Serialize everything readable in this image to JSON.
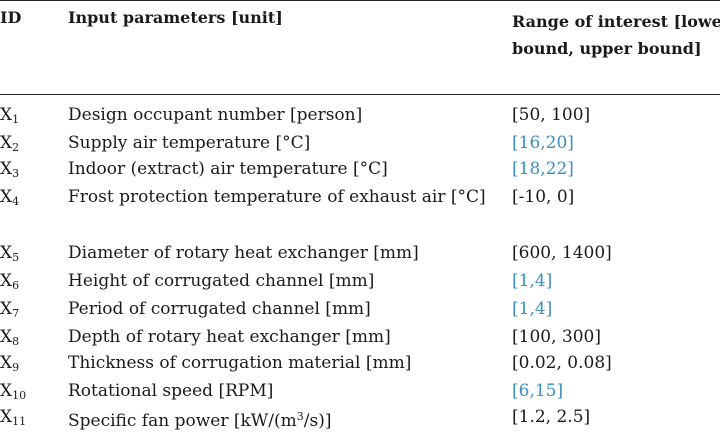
{
  "header": {
    "id_label": "ID",
    "param_label": "Input parameters [unit]",
    "range_label": "Range of interest [lower bound, upper bound]"
  },
  "rows": [
    {
      "id": "X",
      "sub": "1",
      "param": "Design occupant number [person]",
      "range": "[50, 100]",
      "highlight": false
    },
    {
      "id": "X",
      "sub": "2",
      "param": "Supply air temperature [°C]",
      "range": "[16,20]",
      "highlight": true
    },
    {
      "id": "X",
      "sub": "3",
      "param": "Indoor (extract) air temperature [°C]",
      "range": "[18,22]",
      "highlight": true
    },
    {
      "id": "X",
      "sub": "4",
      "param": "Frost protection temperature of exhaust air [°C]",
      "range": "[-10, 0]",
      "highlight": false
    },
    {
      "id": "X",
      "sub": "5",
      "param": "Diameter of rotary heat exchanger [mm]",
      "range": "[600, 1400]",
      "highlight": false
    },
    {
      "id": "X",
      "sub": "6",
      "param": "Height of corrugated channel [mm]",
      "range": "[1,4]",
      "highlight": true
    },
    {
      "id": "X",
      "sub": "7",
      "param": "Period of corrugated channel [mm]",
      "range": "[1,4]",
      "highlight": true
    },
    {
      "id": "X",
      "sub": "8",
      "param": "Depth of rotary heat exchanger [mm]",
      "range": "[100, 300]",
      "highlight": false
    },
    {
      "id": "X",
      "sub": "9",
      "param": "Thickness of corrugation material [mm]",
      "range": "[0.02, 0.08]",
      "highlight": false
    },
    {
      "id": "X",
      "sub": "10",
      "param": "Rotational speed [RPM]",
      "range": "[6,15]",
      "highlight": true
    },
    {
      "id": "X",
      "sub": "11",
      "param_pre": "Specific fan power [kW/(m",
      "param_sup": "3",
      "param_post": "/s)]",
      "range": "[1.2, 2.5]",
      "highlight": false
    }
  ],
  "colors": {
    "text": "#1a1a1a",
    "highlight": "#3a8fc4"
  }
}
